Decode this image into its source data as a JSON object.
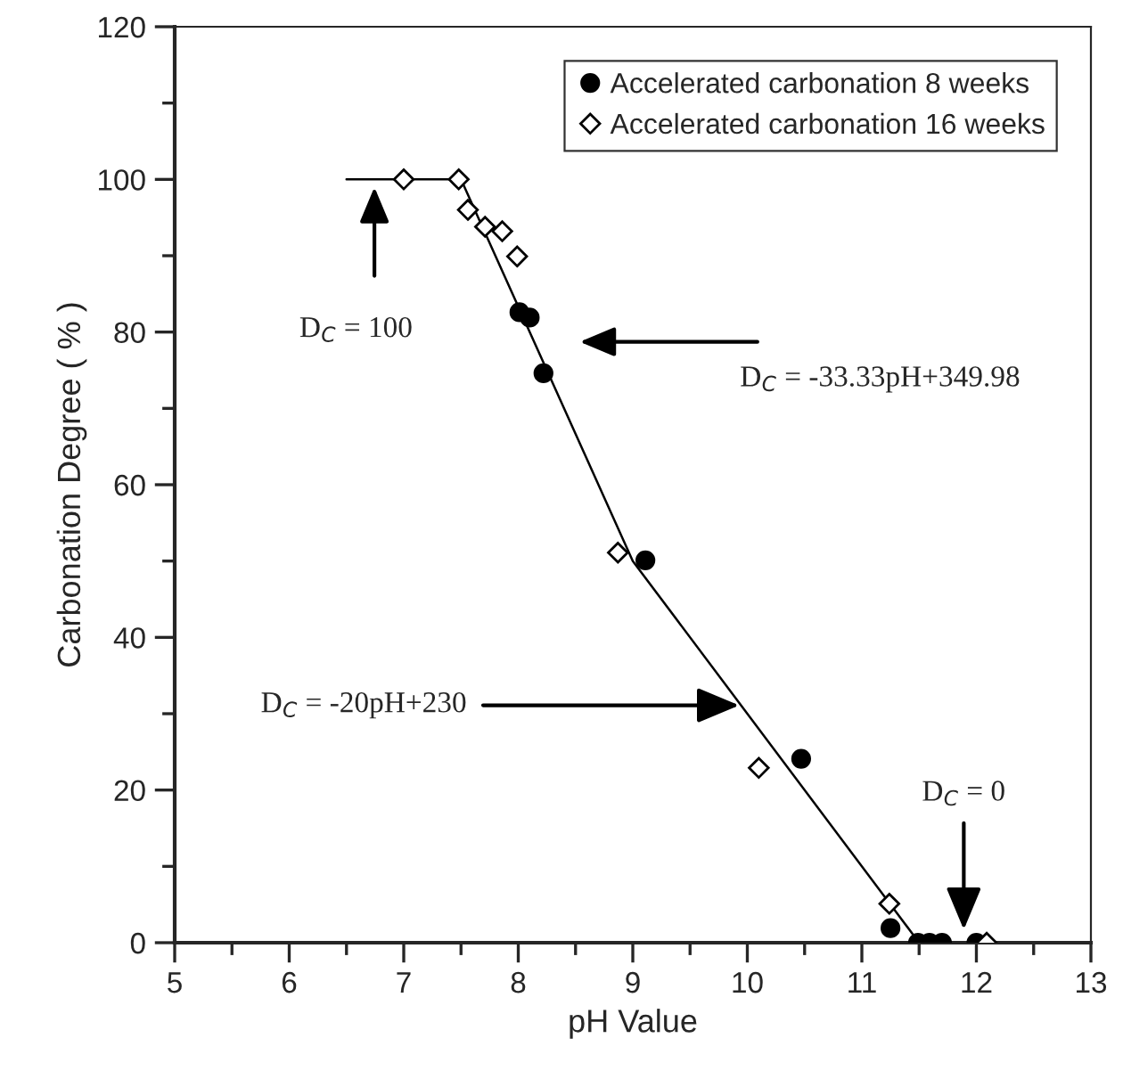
{
  "chart_data": {
    "type": "scatter",
    "xlabel": "pH Value",
    "ylabel": "Carbonation Degree ( % )",
    "xlim": [
      5,
      13
    ],
    "xticks": [
      5,
      6,
      7,
      8,
      9,
      10,
      11,
      12,
      13
    ],
    "ylim": [
      0,
      120
    ],
    "yticks": [
      0,
      20,
      40,
      60,
      80,
      100,
      120
    ],
    "grid": false,
    "legend": "top right",
    "series": [
      {
        "name": "Accelerated carbonation 8 weeks",
        "marker": "circle",
        "color": "#000000",
        "x": [
          8.01,
          8.1,
          8.22,
          9.11,
          10.47,
          11.25,
          11.49,
          11.59,
          11.7,
          12.0
        ],
        "values": [
          82.6,
          81.9,
          74.6,
          50.1,
          24.1,
          1.9,
          0,
          0,
          0,
          0
        ]
      },
      {
        "name": "Accelerated carbonation 16 weeks",
        "marker": "diamond",
        "color": "#000000",
        "x": [
          7.0,
          7.48,
          7.56,
          7.71,
          7.86,
          7.99,
          8.87,
          10.1,
          11.24,
          12.09
        ],
        "values": [
          100,
          100,
          96,
          93.8,
          93.2,
          89.9,
          51.1,
          22.9,
          5.1,
          0
        ]
      },
      {
        "type": "line",
        "marker": "none",
        "line_style": "solid",
        "color": "#000000",
        "x": [
          6.5,
          7.5,
          9,
          11.5,
          12
        ],
        "values": [
          100,
          100,
          50,
          0,
          0
        ]
      }
    ],
    "annotations": [
      "D$_{C}$ = 100",
      "D$_{C}$ = -33.33pH+349.98",
      {
        "text": "D$_{C}$ = -20pH+230",
        "x": 9.93,
        "y": 31.1
      },
      {
        "text": "D$_{C}$ = 0",
        "x": 11.89,
        "y": 1.7
      }
    ]
  }
}
